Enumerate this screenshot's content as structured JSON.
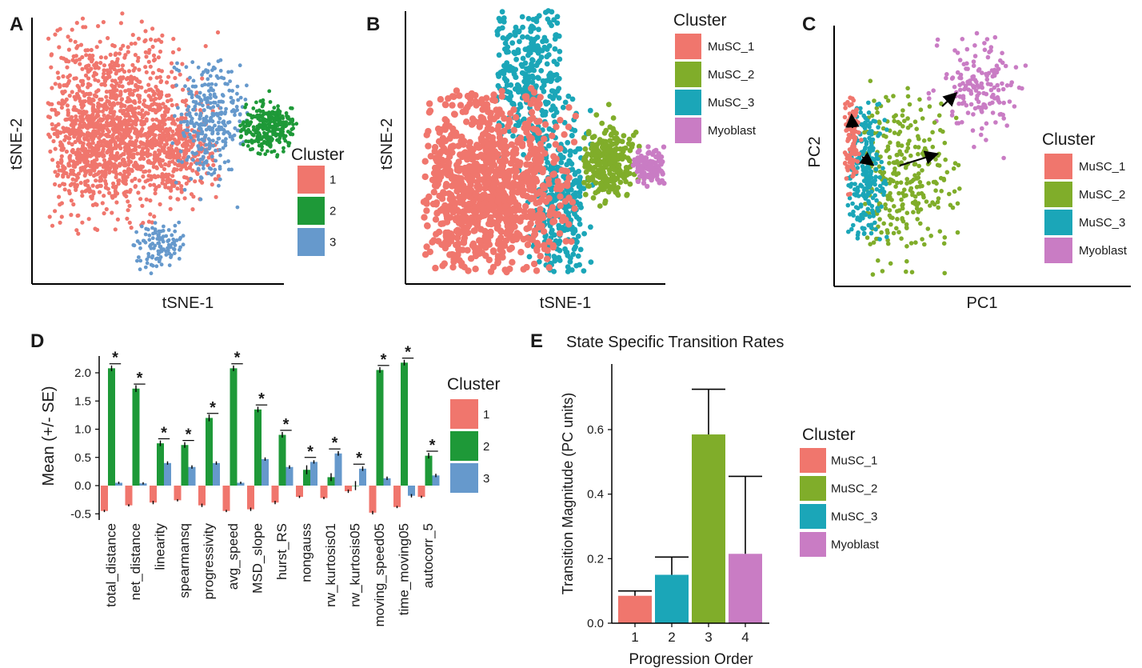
{
  "chart_data": [
    {
      "panel": "A",
      "type": "scatter",
      "xlabel": "tSNE-1",
      "ylabel": "tSNE-2",
      "legend": {
        "title": "Cluster",
        "position": "right",
        "entries": [
          {
            "label": "1",
            "color": "#F0766D"
          },
          {
            "label": "2",
            "color": "#1E9938"
          },
          {
            "label": "3",
            "color": "#6699CC"
          }
        ]
      },
      "grid": false,
      "axis_ticks": false
    },
    {
      "panel": "B",
      "type": "scatter",
      "xlabel": "tSNE-1",
      "ylabel": "tSNE-2",
      "legend": {
        "title": "Cluster",
        "position": "top-right",
        "entries": [
          {
            "label": "MuSC_1",
            "color": "#F0766D"
          },
          {
            "label": "MuSC_2",
            "color": "#80AD2A"
          },
          {
            "label": "MuSC_3",
            "color": "#1BA6B8"
          },
          {
            "label": "Myoblast",
            "color": "#C97CC4"
          }
        ]
      },
      "grid": false,
      "axis_ticks": false
    },
    {
      "panel": "C",
      "type": "scatter",
      "xlabel": "PC1",
      "ylabel": "PC2",
      "legend": {
        "title": "Cluster",
        "position": "right",
        "entries": [
          {
            "label": "MuSC_1",
            "color": "#F0766D"
          },
          {
            "label": "MuSC_2",
            "color": "#80AD2A"
          },
          {
            "label": "MuSC_3",
            "color": "#1BA6B8"
          },
          {
            "label": "Myoblast",
            "color": "#C97CC4"
          }
        ]
      },
      "arrows": 4,
      "grid": false,
      "axis_ticks": false
    },
    {
      "panel": "D",
      "type": "bar",
      "ylabel": "Mean (+/- SE)",
      "ylim": [
        -0.5,
        2.2
      ],
      "yticks": [
        "-0.5",
        "0.0",
        "0.5",
        "1.0",
        "1.5",
        "2.0"
      ],
      "categories": [
        "total_distance",
        "net_distance",
        "linearity",
        "spearmansq",
        "progressivity",
        "avg_speed",
        "MSD_slope",
        "hurst_RS",
        "nongauss",
        "rw_kurtosis01",
        "rw_kurtosis05",
        "moving_speed05",
        "time_moving05",
        "autocorr_5"
      ],
      "series": [
        {
          "name": "1",
          "color": "#F0766D",
          "values": [
            -0.45,
            -0.35,
            -0.3,
            -0.26,
            -0.35,
            -0.45,
            -0.42,
            -0.3,
            -0.2,
            -0.22,
            -0.1,
            -0.48,
            -0.38,
            -0.2
          ]
        },
        {
          "name": "2",
          "color": "#1E9938",
          "values": [
            2.08,
            1.72,
            0.75,
            0.72,
            1.2,
            2.08,
            1.35,
            0.9,
            0.28,
            0.15,
            0.0,
            2.05,
            2.18,
            0.53
          ]
        },
        {
          "name": "3",
          "color": "#6699CC",
          "values": [
            0.05,
            0.04,
            0.4,
            0.33,
            0.4,
            0.05,
            0.47,
            0.33,
            0.42,
            0.57,
            0.3,
            0.13,
            -0.18,
            0.18
          ]
        }
      ],
      "errors": {
        "1": [
          0.02,
          0.02,
          0.03,
          0.02,
          0.03,
          0.02,
          0.03,
          0.03,
          0.02,
          0.02,
          0.03,
          0.03,
          0.02,
          0.02
        ],
        "2": [
          0.05,
          0.06,
          0.05,
          0.05,
          0.06,
          0.05,
          0.05,
          0.05,
          0.08,
          0.07,
          0.08,
          0.05,
          0.05,
          0.05
        ],
        "3": [
          0.02,
          0.02,
          0.03,
          0.03,
          0.03,
          0.02,
          0.03,
          0.03,
          0.03,
          0.04,
          0.04,
          0.03,
          0.03,
          0.03
        ]
      },
      "significance": {
        "label": "*",
        "categories": [
          "total_distance",
          "net_distance",
          "linearity",
          "spearmansq",
          "progressivity",
          "avg_speed",
          "MSD_slope",
          "hurst_RS",
          "nongauss",
          "rw_kurtosis01",
          "rw_kurtosis05",
          "moving_speed05",
          "time_moving05",
          "autocorr_5"
        ]
      },
      "legend": {
        "title": "Cluster",
        "position": "right"
      },
      "grid": false
    },
    {
      "panel": "E",
      "type": "bar",
      "title": "State Specific Transition Rates",
      "xlabel": "Progression Order",
      "ylabel": "Transition Magnitude (PC units)",
      "ylim": [
        0,
        0.75
      ],
      "yticks": [
        "0.0",
        "0.2",
        "0.4",
        "0.6"
      ],
      "categories": [
        "1",
        "2",
        "3",
        "4"
      ],
      "values": [
        0.085,
        0.15,
        0.585,
        0.215
      ],
      "error_upper": [
        0.1,
        0.205,
        0.725,
        0.455
      ],
      "bar_series": [
        "MuSC_1",
        "MuSC_3",
        "MuSC_2",
        "Myoblast"
      ],
      "legend": {
        "title": "Cluster",
        "position": "right",
        "entries": [
          {
            "label": "MuSC_1",
            "color": "#F0766D"
          },
          {
            "label": "MuSC_2",
            "color": "#80AD2A"
          },
          {
            "label": "MuSC_3",
            "color": "#1BA6B8"
          },
          {
            "label": "Myoblast",
            "color": "#C97CC4"
          }
        ]
      },
      "grid": false
    }
  ],
  "panels": {
    "a": {
      "letter": "A"
    },
    "b": {
      "letter": "B"
    },
    "c": {
      "letter": "C"
    },
    "d": {
      "letter": "D"
    },
    "e": {
      "letter": "E"
    }
  }
}
